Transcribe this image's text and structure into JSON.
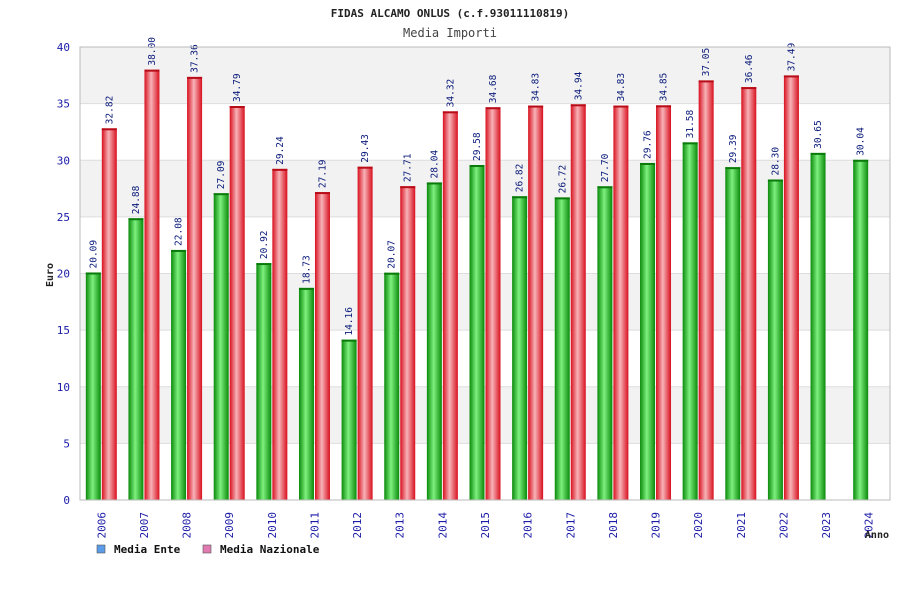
{
  "chart_data": {
    "type": "bar",
    "title": "FIDAS ALCAMO ONLUS (c.f.93011110819)",
    "subtitle": "Media Importi",
    "xlabel": "Anno",
    "ylabel": "Euro",
    "ylim": [
      0,
      40
    ],
    "yticks": [
      0,
      5,
      10,
      15,
      20,
      25,
      30,
      35,
      40
    ],
    "grid": true,
    "legend_position": "bottom-left",
    "categories": [
      "2006",
      "2007",
      "2008",
      "2009",
      "2010",
      "2011",
      "2012",
      "2013",
      "2014",
      "2015",
      "2016",
      "2017",
      "2018",
      "2019",
      "2020",
      "2021",
      "2022",
      "2023",
      "2024"
    ],
    "series": [
      {
        "name": "Media Ente",
        "color": "#22bb22",
        "legend_color": "#5b9be8",
        "values": [
          20.09,
          24.88,
          22.08,
          27.09,
          20.92,
          18.73,
          14.16,
          20.07,
          28.04,
          29.58,
          26.82,
          26.72,
          27.7,
          29.76,
          31.58,
          29.39,
          28.3,
          30.65,
          30.04
        ],
        "labels": [
          "20.09",
          "24.88",
          "22.08",
          "27.09",
          "20.92",
          "18.73",
          "14.16",
          "20.07",
          "28.04",
          "29.58",
          "26.82",
          "26.72",
          "27.70",
          "29.76",
          "31.58",
          "29.39",
          "28.30",
          "30.65",
          "30.04"
        ]
      },
      {
        "name": "Media Nazionale",
        "color": "#ee2233",
        "legend_color": "#e07ab0",
        "values": [
          32.82,
          38.0,
          37.36,
          34.79,
          29.24,
          27.19,
          29.43,
          27.71,
          34.32,
          34.68,
          34.83,
          34.94,
          34.83,
          34.85,
          37.05,
          36.46,
          37.49,
          null,
          null
        ],
        "labels": [
          "32.82",
          "38.00",
          "37.36",
          "34.79",
          "29.24",
          "27.19",
          "29.43",
          "27.71",
          "34.32",
          "34.68",
          "34.83",
          "34.94",
          "34.83",
          "34.85",
          "37.05",
          "36.46",
          "37.49",
          "",
          ""
        ]
      }
    ]
  }
}
